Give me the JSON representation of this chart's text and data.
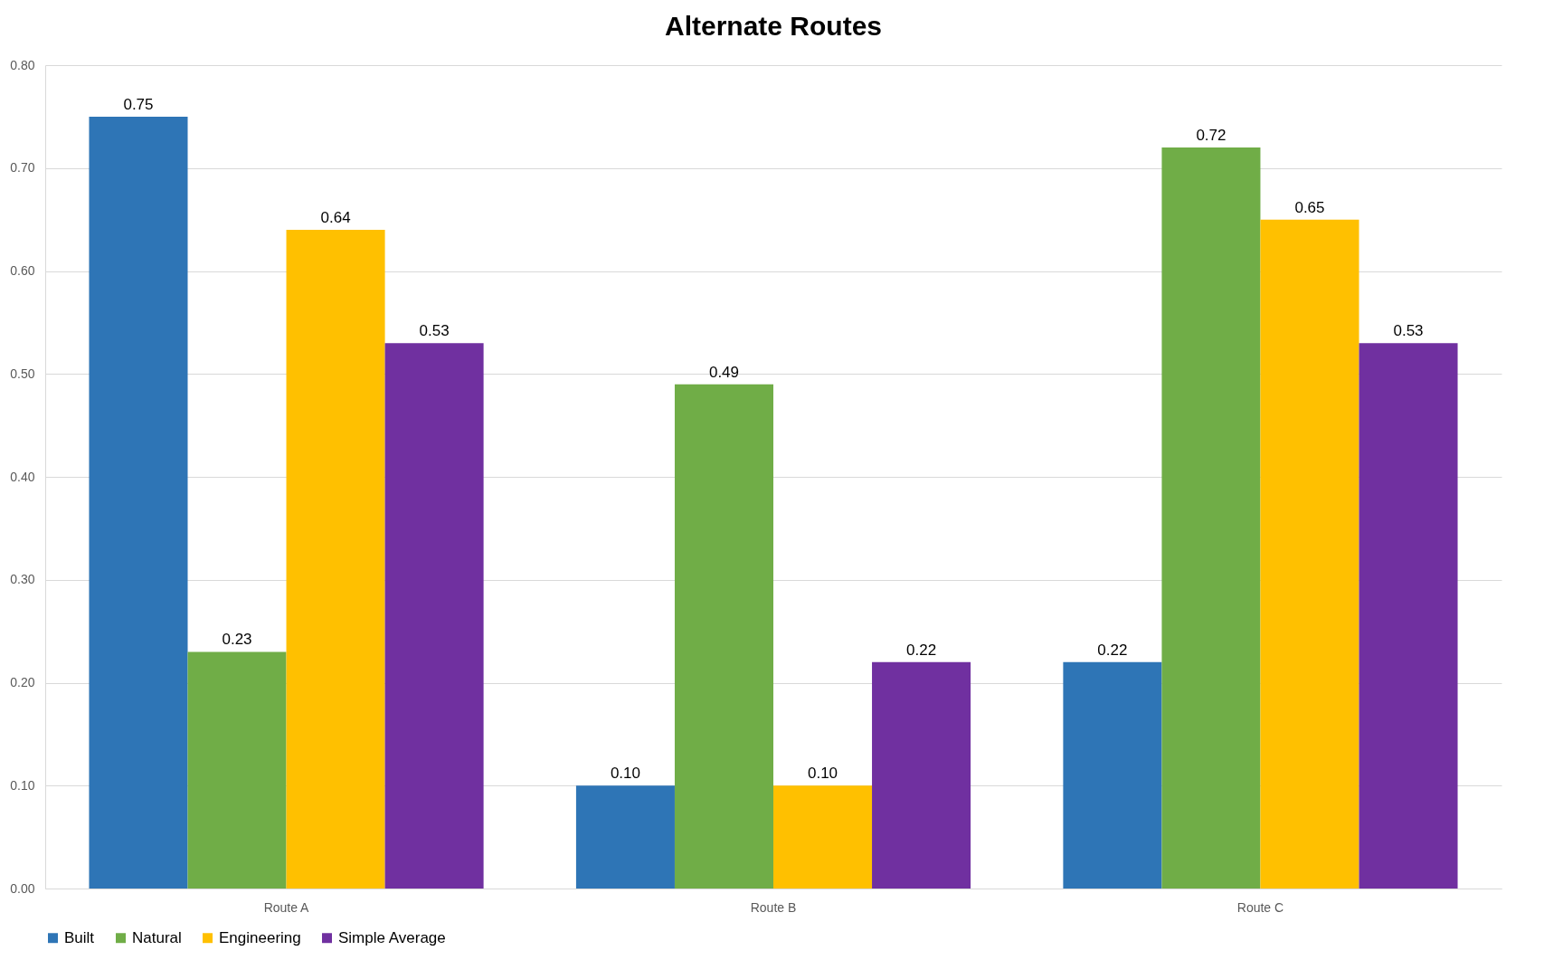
{
  "chart_data": {
    "type": "bar",
    "title": "Alternate Routes",
    "categories": [
      "Route A",
      "Route B",
      "Route C"
    ],
    "series": [
      {
        "name": "Built",
        "color": "#2e75b6",
        "values": [
          0.75,
          0.1,
          0.22
        ],
        "value_labels": [
          "0.75",
          "0.10",
          "0.22"
        ]
      },
      {
        "name": "Natural",
        "color": "#70ad47",
        "values": [
          0.23,
          0.49,
          0.72
        ],
        "value_labels": [
          "0.23",
          "0.49",
          "0.72"
        ]
      },
      {
        "name": "Engineering",
        "color": "#ffc000",
        "values": [
          0.64,
          0.1,
          0.65
        ],
        "value_labels": [
          "0.64",
          "0.10",
          "0.65"
        ]
      },
      {
        "name": "Simple Average",
        "color": "#7030a0",
        "values": [
          0.53,
          0.22,
          0.53
        ],
        "value_labels": [
          "0.53",
          "0.22",
          "0.53"
        ]
      }
    ],
    "ylim": [
      0,
      0.8
    ],
    "yticks": [
      {
        "value": 0,
        "label": "0.00"
      },
      {
        "value": 0.1,
        "label": "0.10"
      },
      {
        "value": 0.2,
        "label": "0.20"
      },
      {
        "value": 0.3,
        "label": "0.30"
      },
      {
        "value": 0.4,
        "label": "0.40"
      },
      {
        "value": 0.5,
        "label": "0.50"
      },
      {
        "value": 0.6,
        "label": "0.60"
      },
      {
        "value": 0.7,
        "label": "0.70"
      },
      {
        "value": 0.8,
        "label": "0.80"
      }
    ],
    "grid": "y",
    "legend": "bottom"
  }
}
